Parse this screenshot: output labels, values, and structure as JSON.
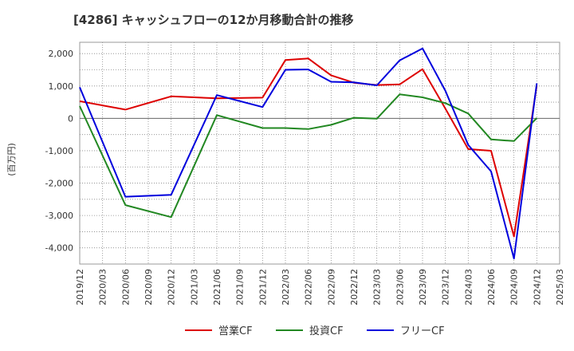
{
  "chart_data": {
    "type": "line",
    "title": "[4286]  キャッシュフローの12か月移動合計の推移",
    "ylabel": "(百万円)",
    "xlabel": "",
    "ylim": [
      -4500,
      2350
    ],
    "yticks": [
      2000,
      1000,
      0,
      -1000,
      -2000,
      -3000,
      -4000
    ],
    "ytick_labels": [
      "2,000",
      "1,000",
      "0",
      "-1,000",
      "-2,000",
      "-3,000",
      "-4,000"
    ],
    "categories": [
      "2019/12",
      "2020/03",
      "2020/06",
      "2020/09",
      "2020/12",
      "2021/03",
      "2021/06",
      "2021/09",
      "2021/12",
      "2022/03",
      "2022/06",
      "2022/09",
      "2022/12",
      "2023/03",
      "2023/06",
      "2023/09",
      "2023/12",
      "2024/03",
      "2024/06",
      "2024/09",
      "2024/12",
      "2025/03"
    ],
    "grid": true,
    "legend_position": "bottom",
    "series": [
      {
        "name": "営業CF",
        "color": "#dd0000",
        "values": [
          530,
          null,
          270,
          null,
          680,
          null,
          620,
          null,
          640,
          1800,
          1850,
          1330,
          1100,
          1030,
          1050,
          1520,
          300,
          -950,
          -1000,
          -3650,
          1020,
          null
        ]
      },
      {
        "name": "投資CF",
        "color": "#228822",
        "values": [
          380,
          null,
          -2680,
          null,
          -3050,
          null,
          100,
          null,
          -300,
          -300,
          -330,
          -200,
          20,
          -10,
          740,
          650,
          470,
          150,
          -650,
          -700,
          10,
          null
        ]
      },
      {
        "name": "フリーCF",
        "color": "#0000dd",
        "values": [
          960,
          null,
          -2420,
          null,
          -2360,
          null,
          720,
          null,
          350,
          1500,
          1510,
          1130,
          1110,
          1020,
          1790,
          2160,
          850,
          -820,
          -1640,
          -4330,
          1080,
          null
        ]
      }
    ]
  }
}
